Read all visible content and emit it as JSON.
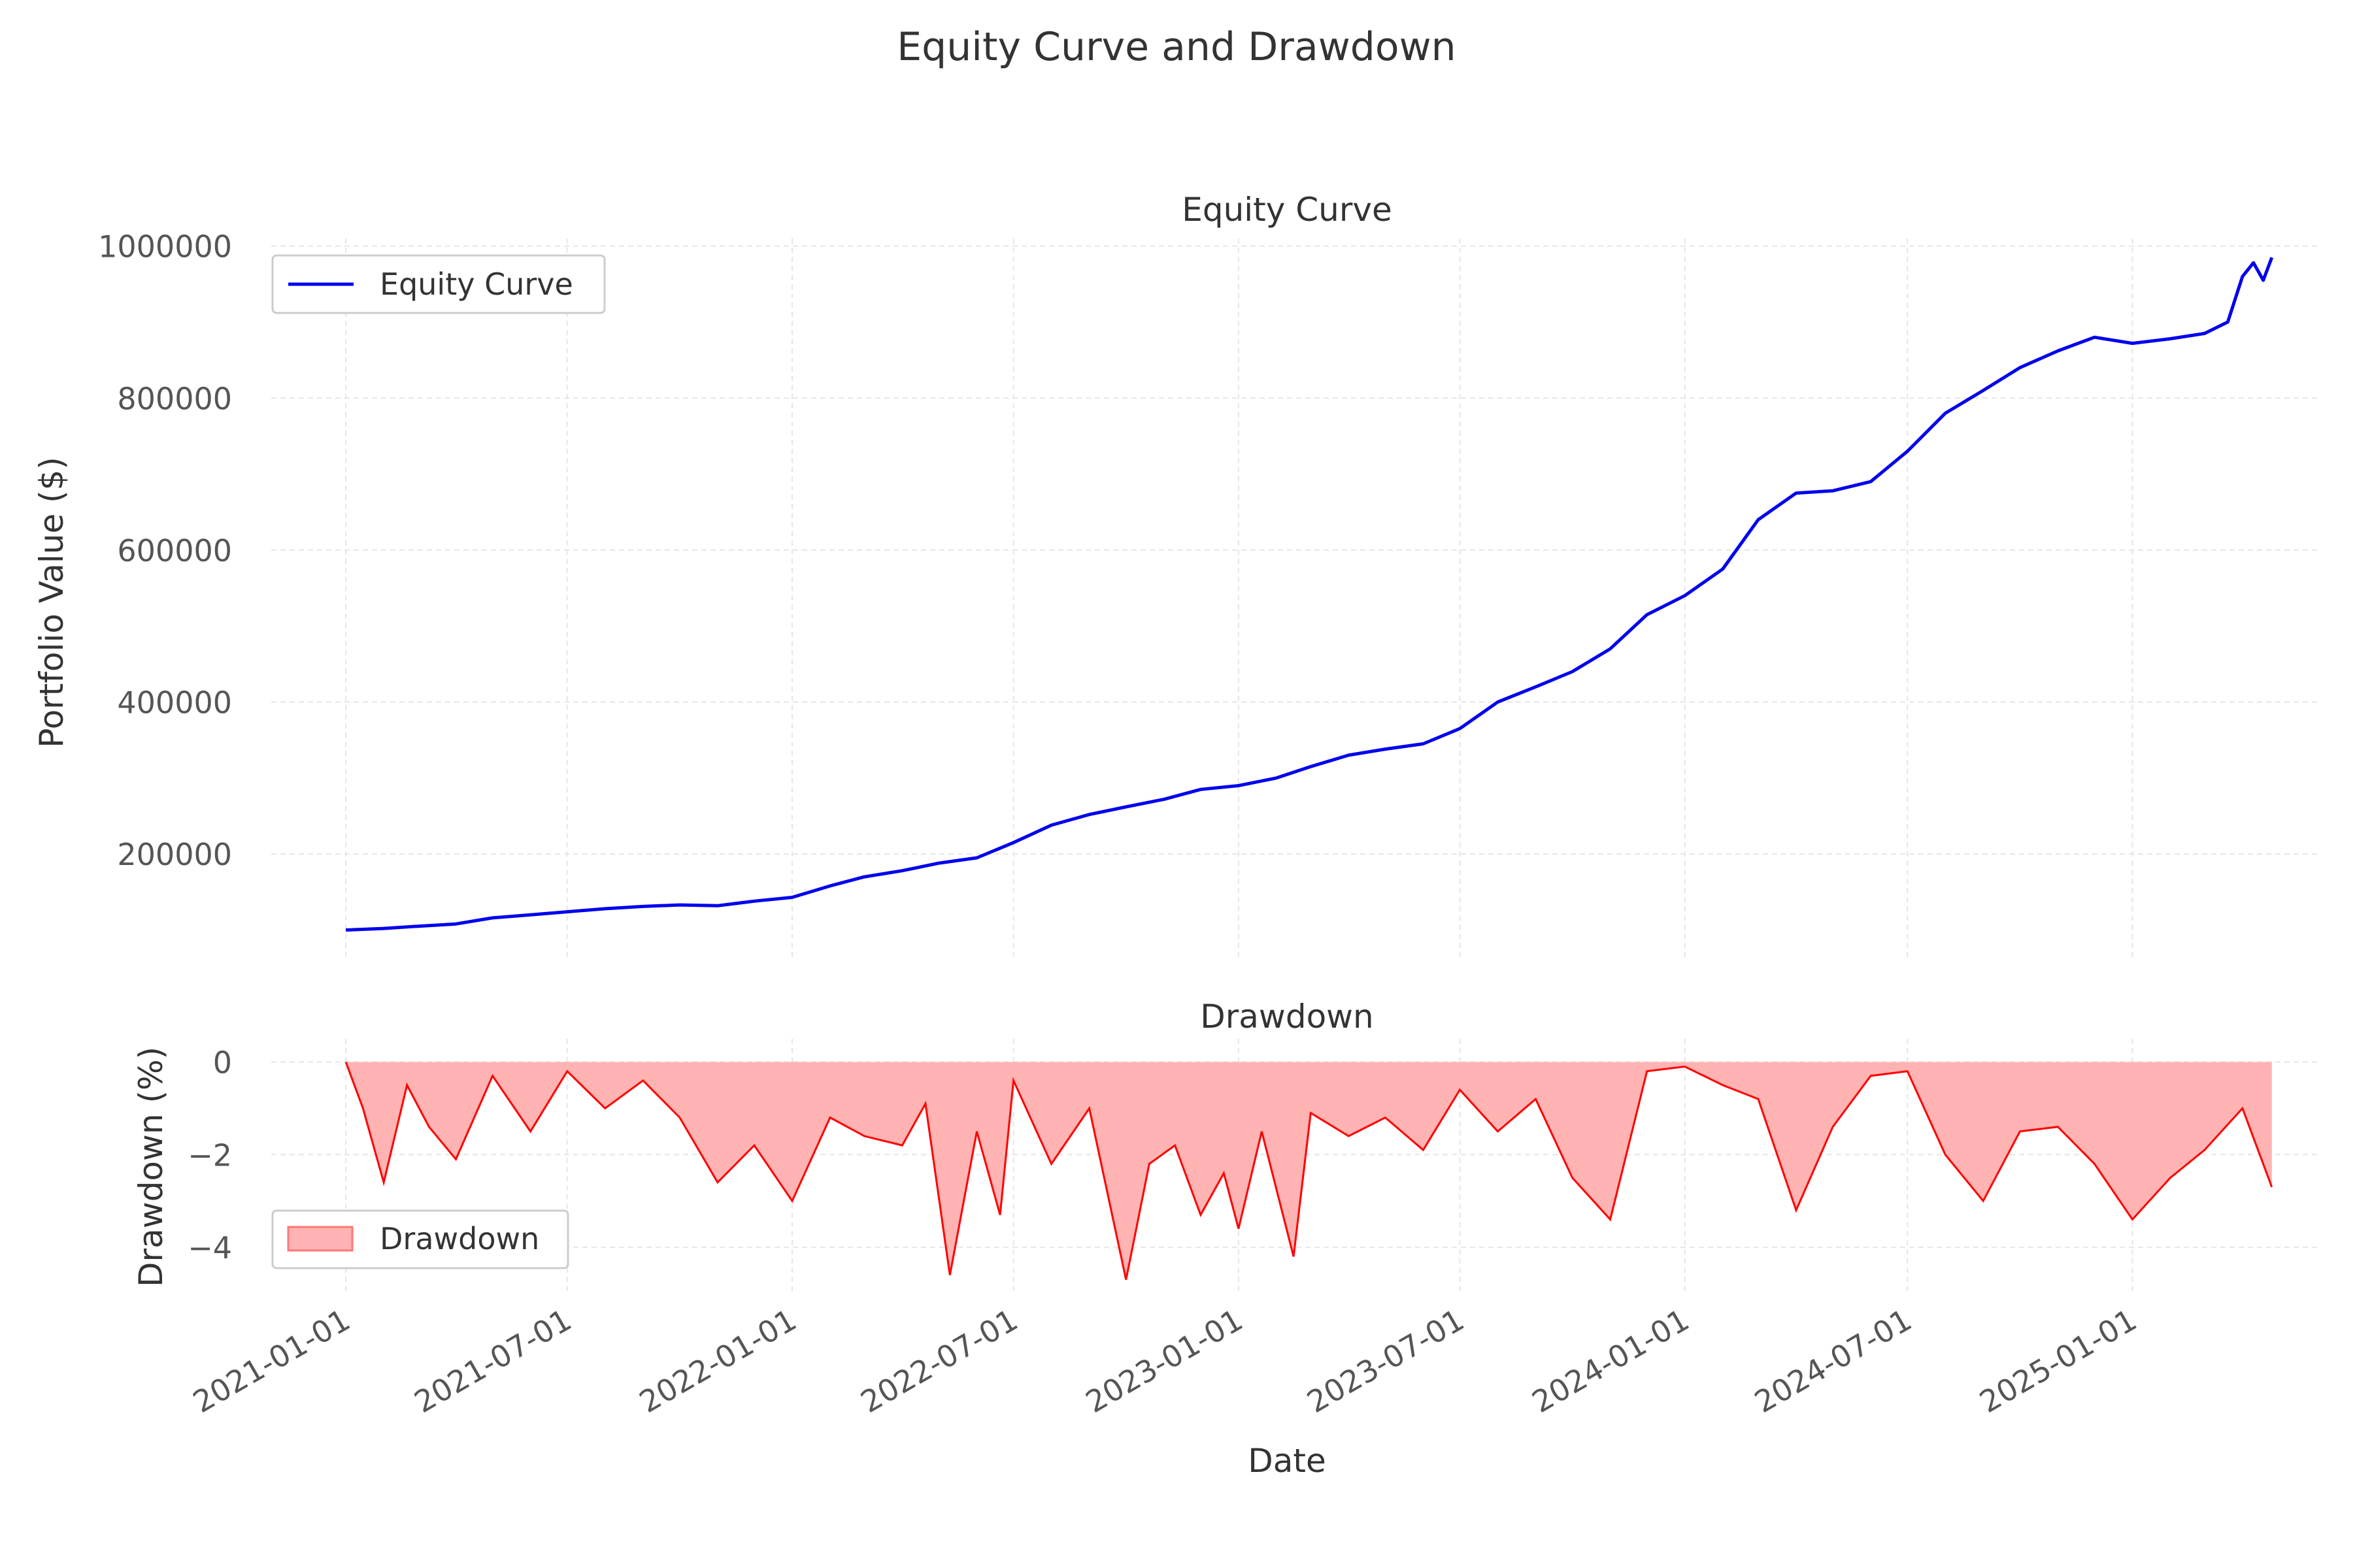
{
  "figure": {
    "title": "Equity Curve and Drawdown"
  },
  "colors": {
    "equity": "#0000ee",
    "drawdown_line": "#ff0000",
    "drawdown_fill": "#ffb3b3",
    "grid": "#e6e6e6",
    "text": "#333333",
    "tick_text": "#555555"
  },
  "chart_data": [
    {
      "type": "line",
      "title": "Equity Curve",
      "xlabel": "",
      "ylabel": "Portfolio Value ($)",
      "xlim": [
        "2020-11-01",
        "2025-06-01"
      ],
      "ylim": [
        60000,
        1010000
      ],
      "yticks": [
        200000,
        400000,
        600000,
        800000,
        1000000
      ],
      "ytick_labels": [
        "200000",
        "400000",
        "600000",
        "800000",
        "1000000"
      ],
      "grid": true,
      "legend": "upper left",
      "series": [
        {
          "name": "Equity Curve",
          "x": [
            "2021-01-01",
            "2021-02-01",
            "2021-03-01",
            "2021-04-01",
            "2021-05-01",
            "2021-06-01",
            "2021-07-01",
            "2021-08-01",
            "2021-09-01",
            "2021-10-01",
            "2021-11-01",
            "2021-12-01",
            "2022-01-01",
            "2022-02-01",
            "2022-03-01",
            "2022-04-01",
            "2022-05-01",
            "2022-06-01",
            "2022-07-01",
            "2022-08-01",
            "2022-09-01",
            "2022-10-01",
            "2022-11-01",
            "2022-12-01",
            "2023-01-01",
            "2023-02-01",
            "2023-03-01",
            "2023-04-01",
            "2023-05-01",
            "2023-06-01",
            "2023-07-01",
            "2023-08-01",
            "2023-09-01",
            "2023-10-01",
            "2023-11-01",
            "2023-12-01",
            "2024-01-01",
            "2024-02-01",
            "2024-03-01",
            "2024-04-01",
            "2024-05-01",
            "2024-06-01",
            "2024-07-01",
            "2024-08-01",
            "2024-09-01",
            "2024-10-01",
            "2024-11-01",
            "2024-12-01",
            "2025-01-01",
            "2025-02-01",
            "2025-03-01",
            "2025-03-20",
            "2025-04-01",
            "2025-04-10",
            "2025-04-18",
            "2025-04-25"
          ],
          "y": [
            100000,
            102000,
            105000,
            108000,
            116000,
            120000,
            124000,
            128000,
            131000,
            133000,
            132000,
            138000,
            143000,
            158000,
            170000,
            178000,
            188000,
            195000,
            215000,
            238000,
            252000,
            262000,
            272000,
            285000,
            290000,
            300000,
            315000,
            330000,
            338000,
            345000,
            365000,
            400000,
            420000,
            440000,
            470000,
            515000,
            540000,
            575000,
            640000,
            675000,
            678000,
            690000,
            730000,
            780000,
            810000,
            840000,
            862000,
            880000,
            872000,
            878000,
            885000,
            900000,
            960000,
            978000,
            955000,
            985000
          ]
        }
      ]
    },
    {
      "type": "area",
      "title": "Drawdown",
      "xlabel": "Date",
      "ylabel": "Drawdown (%)",
      "xlim": [
        "2020-11-01",
        "2025-06-01"
      ],
      "ylim": [
        -5,
        0.5
      ],
      "yticks": [
        0,
        -2,
        -4
      ],
      "ytick_labels": [
        "0",
        "−2",
        "−4"
      ],
      "xticks": [
        "2021-01-01",
        "2021-07-01",
        "2022-01-01",
        "2022-07-01",
        "2023-01-01",
        "2023-07-01",
        "2024-01-01",
        "2024-07-01",
        "2025-01-01"
      ],
      "xtick_labels": [
        "2021-01-01",
        "2021-07-01",
        "2022-01-01",
        "2022-07-01",
        "2023-01-01",
        "2023-07-01",
        "2024-01-01",
        "2024-07-01",
        "2025-01-01"
      ],
      "grid": true,
      "legend": "lower left",
      "series": [
        {
          "name": "Drawdown",
          "x": [
            "2021-01-01",
            "2021-01-15",
            "2021-02-01",
            "2021-02-20",
            "2021-03-10",
            "2021-04-01",
            "2021-05-01",
            "2021-06-01",
            "2021-07-01",
            "2021-08-01",
            "2021-09-01",
            "2021-10-01",
            "2021-11-01",
            "2021-12-01",
            "2022-01-01",
            "2022-02-01",
            "2022-03-01",
            "2022-04-01",
            "2022-04-20",
            "2022-05-10",
            "2022-06-01",
            "2022-06-20",
            "2022-07-01",
            "2022-08-01",
            "2022-09-01",
            "2022-10-01",
            "2022-10-20",
            "2022-11-10",
            "2022-12-01",
            "2022-12-20",
            "2023-01-01",
            "2023-01-20",
            "2023-02-15",
            "2023-03-01",
            "2023-04-01",
            "2023-05-01",
            "2023-06-01",
            "2023-07-01",
            "2023-08-01",
            "2023-09-01",
            "2023-10-01",
            "2023-11-01",
            "2023-12-01",
            "2024-01-01",
            "2024-02-01",
            "2024-03-01",
            "2024-04-01",
            "2024-05-01",
            "2024-06-01",
            "2024-07-01",
            "2024-08-01",
            "2024-09-01",
            "2024-10-01",
            "2024-11-01",
            "2024-12-01",
            "2025-01-01",
            "2025-02-01",
            "2025-03-01",
            "2025-04-01",
            "2025-04-25"
          ],
          "y": [
            0,
            -1.0,
            -2.6,
            -0.5,
            -1.4,
            -2.1,
            -0.3,
            -1.5,
            -0.2,
            -1.0,
            -0.4,
            -1.2,
            -2.6,
            -1.8,
            -3.0,
            -1.2,
            -1.6,
            -1.8,
            -0.9,
            -4.6,
            -1.5,
            -3.3,
            -0.4,
            -2.2,
            -1.0,
            -4.7,
            -2.2,
            -1.8,
            -3.3,
            -2.4,
            -3.6,
            -1.5,
            -4.2,
            -1.1,
            -1.6,
            -1.2,
            -1.9,
            -0.6,
            -1.5,
            -0.8,
            -2.5,
            -3.4,
            -0.2,
            -0.1,
            -0.5,
            -0.8,
            -3.2,
            -1.4,
            -0.3,
            -0.2,
            -2.0,
            -3.0,
            -1.5,
            -1.4,
            -2.2,
            -3.4,
            -2.5,
            -1.9,
            -1.0,
            -2.7
          ]
        }
      ]
    }
  ]
}
